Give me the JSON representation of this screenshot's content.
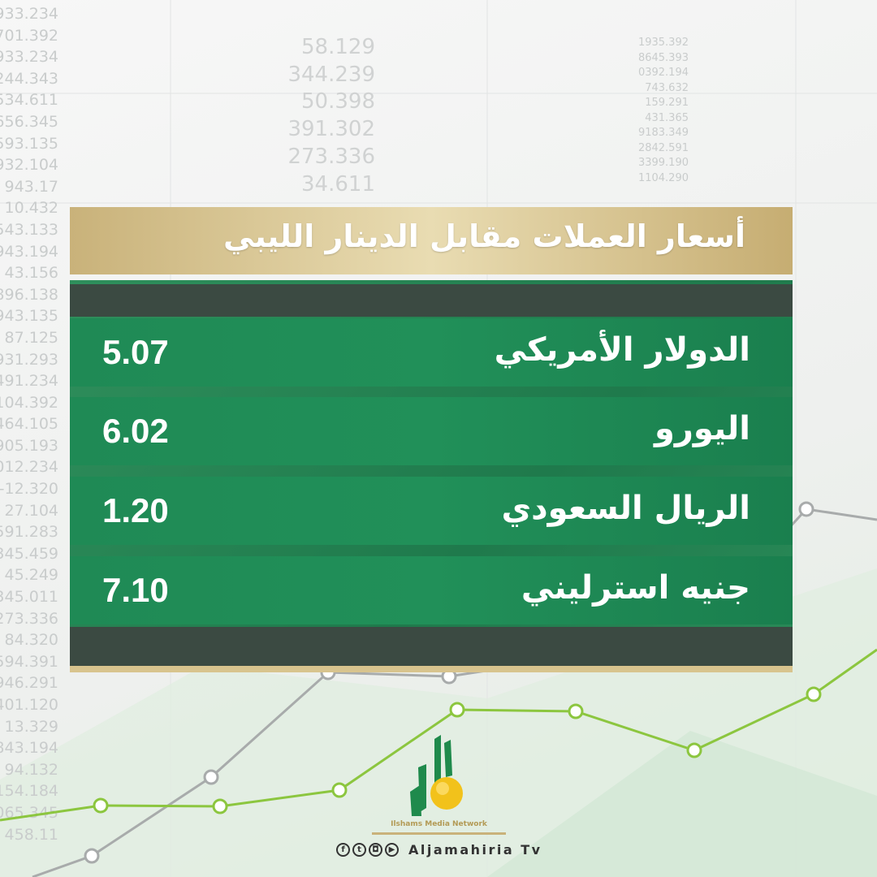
{
  "background_numbers": {
    "col1": [
      "933.234",
      "701.392",
      "933.234",
      "244.343",
      "534.611",
      "656.345",
      "593.135",
      "932.104",
      "943.17",
      "10.432",
      "543.133",
      "943.194",
      "43.156",
      "896.138",
      "943.135",
      "87.125",
      "931.293",
      "491.234",
      "104.392",
      "464.105",
      "905.193",
      "012.234",
      "-12.320",
      "27.104",
      "591.283",
      "345.459",
      "45.249",
      "345.011",
      "273.336",
      "84.320",
      "594.391",
      "946.291",
      "401.120",
      "13.329",
      "843.194",
      "94.132",
      "154.184",
      "065.345",
      "458.11"
    ],
    "col2": [
      "58.129",
      "344.239",
      "50.398",
      "391.302",
      "273.336",
      "34.611"
    ],
    "col3": [
      "1935.392",
      "8645.393",
      "0392.194",
      "743.632",
      "159.291",
      "431.365",
      "9183.349",
      "2842.591",
      "3399.190",
      "1104.290"
    ]
  },
  "title": "أسعار العملات مقابل الدينار الليبي",
  "rates": [
    {
      "currency": "الدولار الأمريكي",
      "value": "5.07"
    },
    {
      "currency": "اليورو",
      "value": "6.02"
    },
    {
      "currency": "الريال السعودي",
      "value": "1.20"
    },
    {
      "currency": "جنيه استرليني",
      "value": "7.10"
    }
  ],
  "footer": {
    "network": "Ilshams Media Network",
    "brand": "Aljamahiria Tv",
    "social": [
      {
        "icon": "facebook-icon",
        "glyph": "f"
      },
      {
        "icon": "twitter-icon",
        "glyph": "t"
      },
      {
        "icon": "instagram-icon",
        "glyph": "◘"
      },
      {
        "icon": "youtube-icon",
        "glyph": "▶"
      }
    ]
  },
  "colors": {
    "gold": "#c9b27a",
    "green": "#1f8a55",
    "dark": "#3b4a42",
    "lime": "#8cc63f"
  }
}
